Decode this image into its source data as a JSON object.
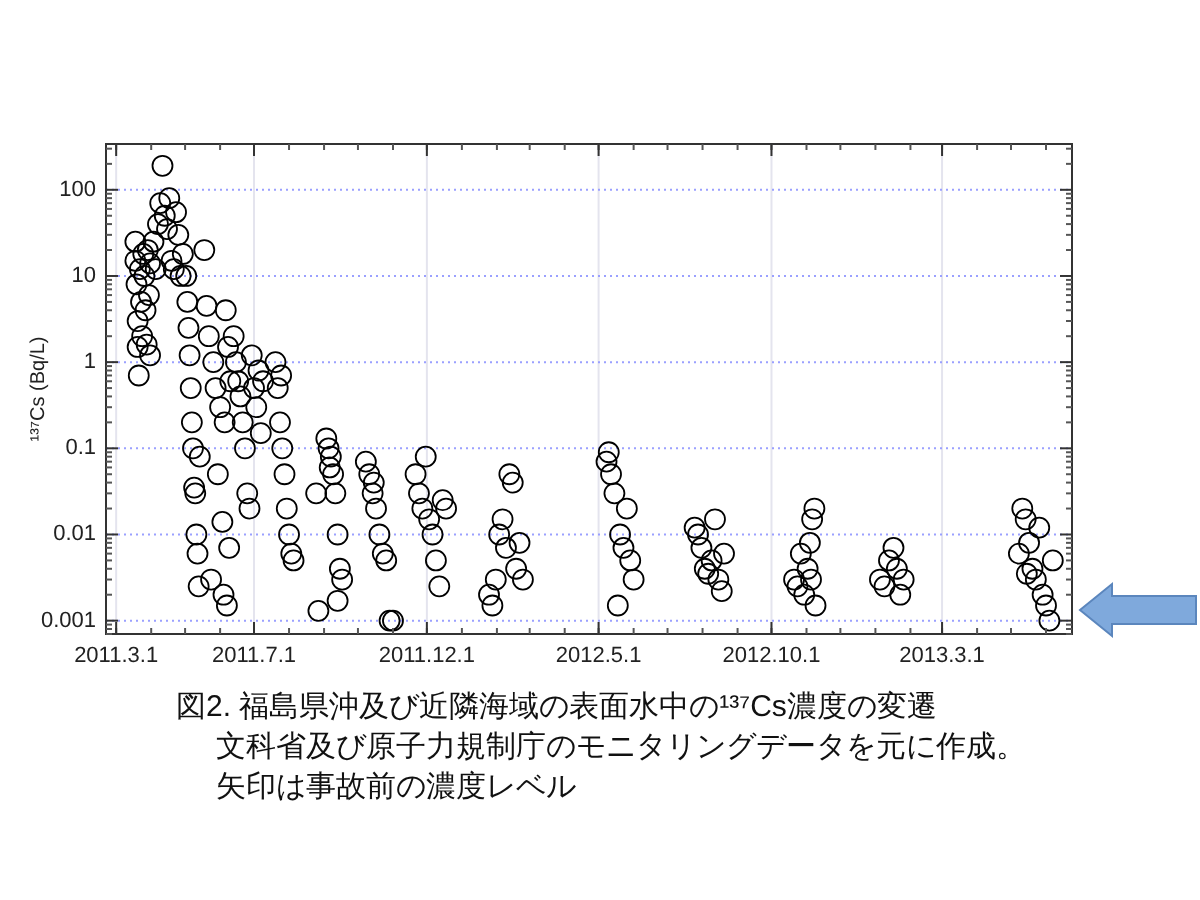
{
  "chart_data": {
    "type": "scatter",
    "ylabel": "¹³⁷Cs (Bq/L)",
    "log": "y",
    "grid": true,
    "marker": "circle",
    "xlim": [
      "2011-02-20",
      "2013-06-24"
    ],
    "ylim": [
      0.0007,
      340
    ],
    "xticks": [
      {
        "value": "2011-03-01",
        "label": "2011.3.1"
      },
      {
        "value": "2011-07-01",
        "label": "2011.7.1"
      },
      {
        "value": "2011-12-01",
        "label": "2011.12.1"
      },
      {
        "value": "2012-05-01",
        "label": "2012.5.1"
      },
      {
        "value": "2012-10-01",
        "label": "2012.10.1"
      },
      {
        "value": "2013-03-01",
        "label": "2013.3.1"
      }
    ],
    "yticks": [
      0.001,
      0.01,
      0.1,
      1,
      10,
      100
    ],
    "annotations": [
      "図2. 福島県沖及び近隣海域の表面水中の¹³⁷Cs濃度の変遷",
      "文科省及び原子力規制庁のモニタリングデータを元に作成。",
      "矢印は事故前の濃度レベル"
    ],
    "series": [
      {
        "color": "#000000",
        "x": [
          "2011-03-18",
          "2011-03-18",
          "2011-03-19",
          "2011-03-20",
          "2011-03-20",
          "2011-03-21",
          "2011-03-22",
          "2011-03-23",
          "2011-03-24",
          "2011-03-25",
          "2011-03-26",
          "2011-03-27",
          "2011-03-28",
          "2011-03-29",
          "2011-03-30",
          "2011-03-31",
          "2011-03-31",
          "2011-04-03",
          "2011-04-05",
          "2011-04-07",
          "2011-04-09",
          "2011-04-11",
          "2011-04-13",
          "2011-04-15",
          "2011-04-17",
          "2011-04-19",
          "2011-04-21",
          "2011-04-23",
          "2011-04-25",
          "2011-04-27",
          "2011-04-29",
          "2011-05-02",
          "2011-05-03",
          "2011-05-04",
          "2011-05-05",
          "2011-05-06",
          "2011-05-07",
          "2011-05-08",
          "2011-05-09",
          "2011-05-10",
          "2011-05-11",
          "2011-05-12",
          "2011-05-13",
          "2011-05-14",
          "2011-05-18",
          "2011-05-20",
          "2011-05-22",
          "2011-05-24",
          "2011-05-26",
          "2011-05-28",
          "2011-05-30",
          "2011-06-01",
          "2011-06-03",
          "2011-06-04",
          "2011-06-05",
          "2011-06-06",
          "2011-06-07",
          "2011-06-08",
          "2011-06-09",
          "2011-06-10",
          "2011-06-13",
          "2011-06-15",
          "2011-06-17",
          "2011-06-19",
          "2011-06-21",
          "2011-06-23",
          "2011-06-25",
          "2011-06-27",
          "2011-06-29",
          "2011-07-01",
          "2011-07-03",
          "2011-07-05",
          "2011-07-07",
          "2011-07-09",
          "2011-07-20",
          "2011-07-22",
          "2011-07-24",
          "2011-07-26",
          "2011-07-28",
          "2011-07-30",
          "2011-08-01",
          "2011-08-03",
          "2011-08-05",
          "2011-07-25",
          "2011-08-25",
          "2011-08-27",
          "2011-09-13",
          "2011-09-03",
          "2011-09-05",
          "2011-09-07",
          "2011-09-09",
          "2011-09-11",
          "2011-09-13",
          "2011-09-15",
          "2011-09-17",
          "2011-09-06",
          "2011-10-08",
          "2011-10-11",
          "2011-10-14",
          "2011-10-17",
          "2011-10-20",
          "2011-10-23",
          "2011-10-26",
          "2011-10-29",
          "2011-11-01",
          "2011-10-15",
          "2011-11-21",
          "2011-11-24",
          "2011-11-27",
          "2011-11-30",
          "2011-12-03",
          "2011-12-06",
          "2011-12-09",
          "2011-12-12",
          "2011-12-15",
          "2011-12-18",
          "2012-01-25",
          "2012-01-28",
          "2012-01-31",
          "2012-02-03",
          "2012-02-06",
          "2012-02-09",
          "2012-02-12",
          "2012-02-15",
          "2012-02-18",
          "2012-02-21",
          "2012-02-24",
          "2012-05-08",
          "2012-05-10",
          "2012-05-12",
          "2012-05-15",
          "2012-05-18",
          "2012-05-20",
          "2012-05-23",
          "2012-05-26",
          "2012-05-29",
          "2012-06-01",
          "2012-07-25",
          "2012-07-28",
          "2012-07-31",
          "2012-08-03",
          "2012-08-06",
          "2012-08-09",
          "2012-08-12",
          "2012-08-15",
          "2012-08-18",
          "2012-08-20",
          "2012-10-21",
          "2012-10-24",
          "2012-10-27",
          "2012-10-30",
          "2012-11-02",
          "2012-11-04",
          "2012-11-06",
          "2012-11-08",
          "2012-11-09",
          "2012-11-05",
          "2013-01-05",
          "2013-01-09",
          "2013-01-13",
          "2013-01-17",
          "2013-01-20",
          "2013-01-23",
          "2013-01-26",
          "2013-05-08",
          "2013-05-11",
          "2013-05-14",
          "2013-05-17",
          "2013-05-20",
          "2013-05-23",
          "2013-05-26",
          "2013-05-29",
          "2013-06-01",
          "2013-06-04",
          "2013-06-07",
          "2013-05-15"
        ],
        "values": [
          25,
          15,
          8,
          3,
          1.5,
          0.7,
          12,
          5,
          2,
          18,
          10,
          4,
          1.6,
          20,
          6,
          1.2,
          14,
          25,
          12,
          40,
          70,
          190,
          50,
          35,
          80,
          15,
          12,
          55,
          30,
          10,
          18,
          10,
          5,
          2.5,
          1.2,
          0.5,
          0.2,
          0.1,
          0.035,
          0.03,
          0.01,
          0.006,
          0.0025,
          0.08,
          20,
          4.5,
          2,
          0.003,
          1,
          0.5,
          0.05,
          0.3,
          0.014,
          0.002,
          0.2,
          4,
          0.0015,
          1.5,
          0.007,
          0.6,
          2,
          1,
          0.6,
          0.4,
          0.2,
          0.1,
          0.03,
          0.02,
          1.2,
          0.5,
          0.3,
          0.8,
          0.15,
          0.6,
          1,
          0.5,
          0.2,
          0.1,
          0.05,
          0.02,
          0.01,
          0.006,
          0.005,
          0.7,
          0.03,
          0.0013,
          0.0017,
          0.13,
          0.1,
          0.08,
          0.05,
          0.03,
          0.01,
          0.004,
          0.003,
          0.06,
          0.07,
          0.05,
          0.03,
          0.02,
          0.01,
          0.006,
          0.005,
          0.001,
          0.001,
          0.04,
          0.05,
          0.03,
          0.02,
          0.08,
          0.015,
          0.01,
          0.005,
          0.0025,
          0.025,
          0.02,
          0.002,
          0.0015,
          0.003,
          0.01,
          0.015,
          0.007,
          0.05,
          0.04,
          0.004,
          0.008,
          0.003,
          0.07,
          0.09,
          0.05,
          0.03,
          0.0015,
          0.01,
          0.007,
          0.02,
          0.005,
          0.003,
          0.012,
          0.01,
          0.007,
          0.004,
          0.0035,
          0.005,
          0.015,
          0.003,
          0.0022,
          0.006,
          0.003,
          0.0025,
          0.006,
          0.002,
          0.004,
          0.008,
          0.015,
          0.02,
          0.0015,
          0.003,
          0.003,
          0.0025,
          0.005,
          0.007,
          0.004,
          0.002,
          0.003,
          0.006,
          0.02,
          0.015,
          0.008,
          0.004,
          0.003,
          0.012,
          0.002,
          0.0015,
          0.001,
          0.005,
          0.0035
        ]
      }
    ]
  }
}
